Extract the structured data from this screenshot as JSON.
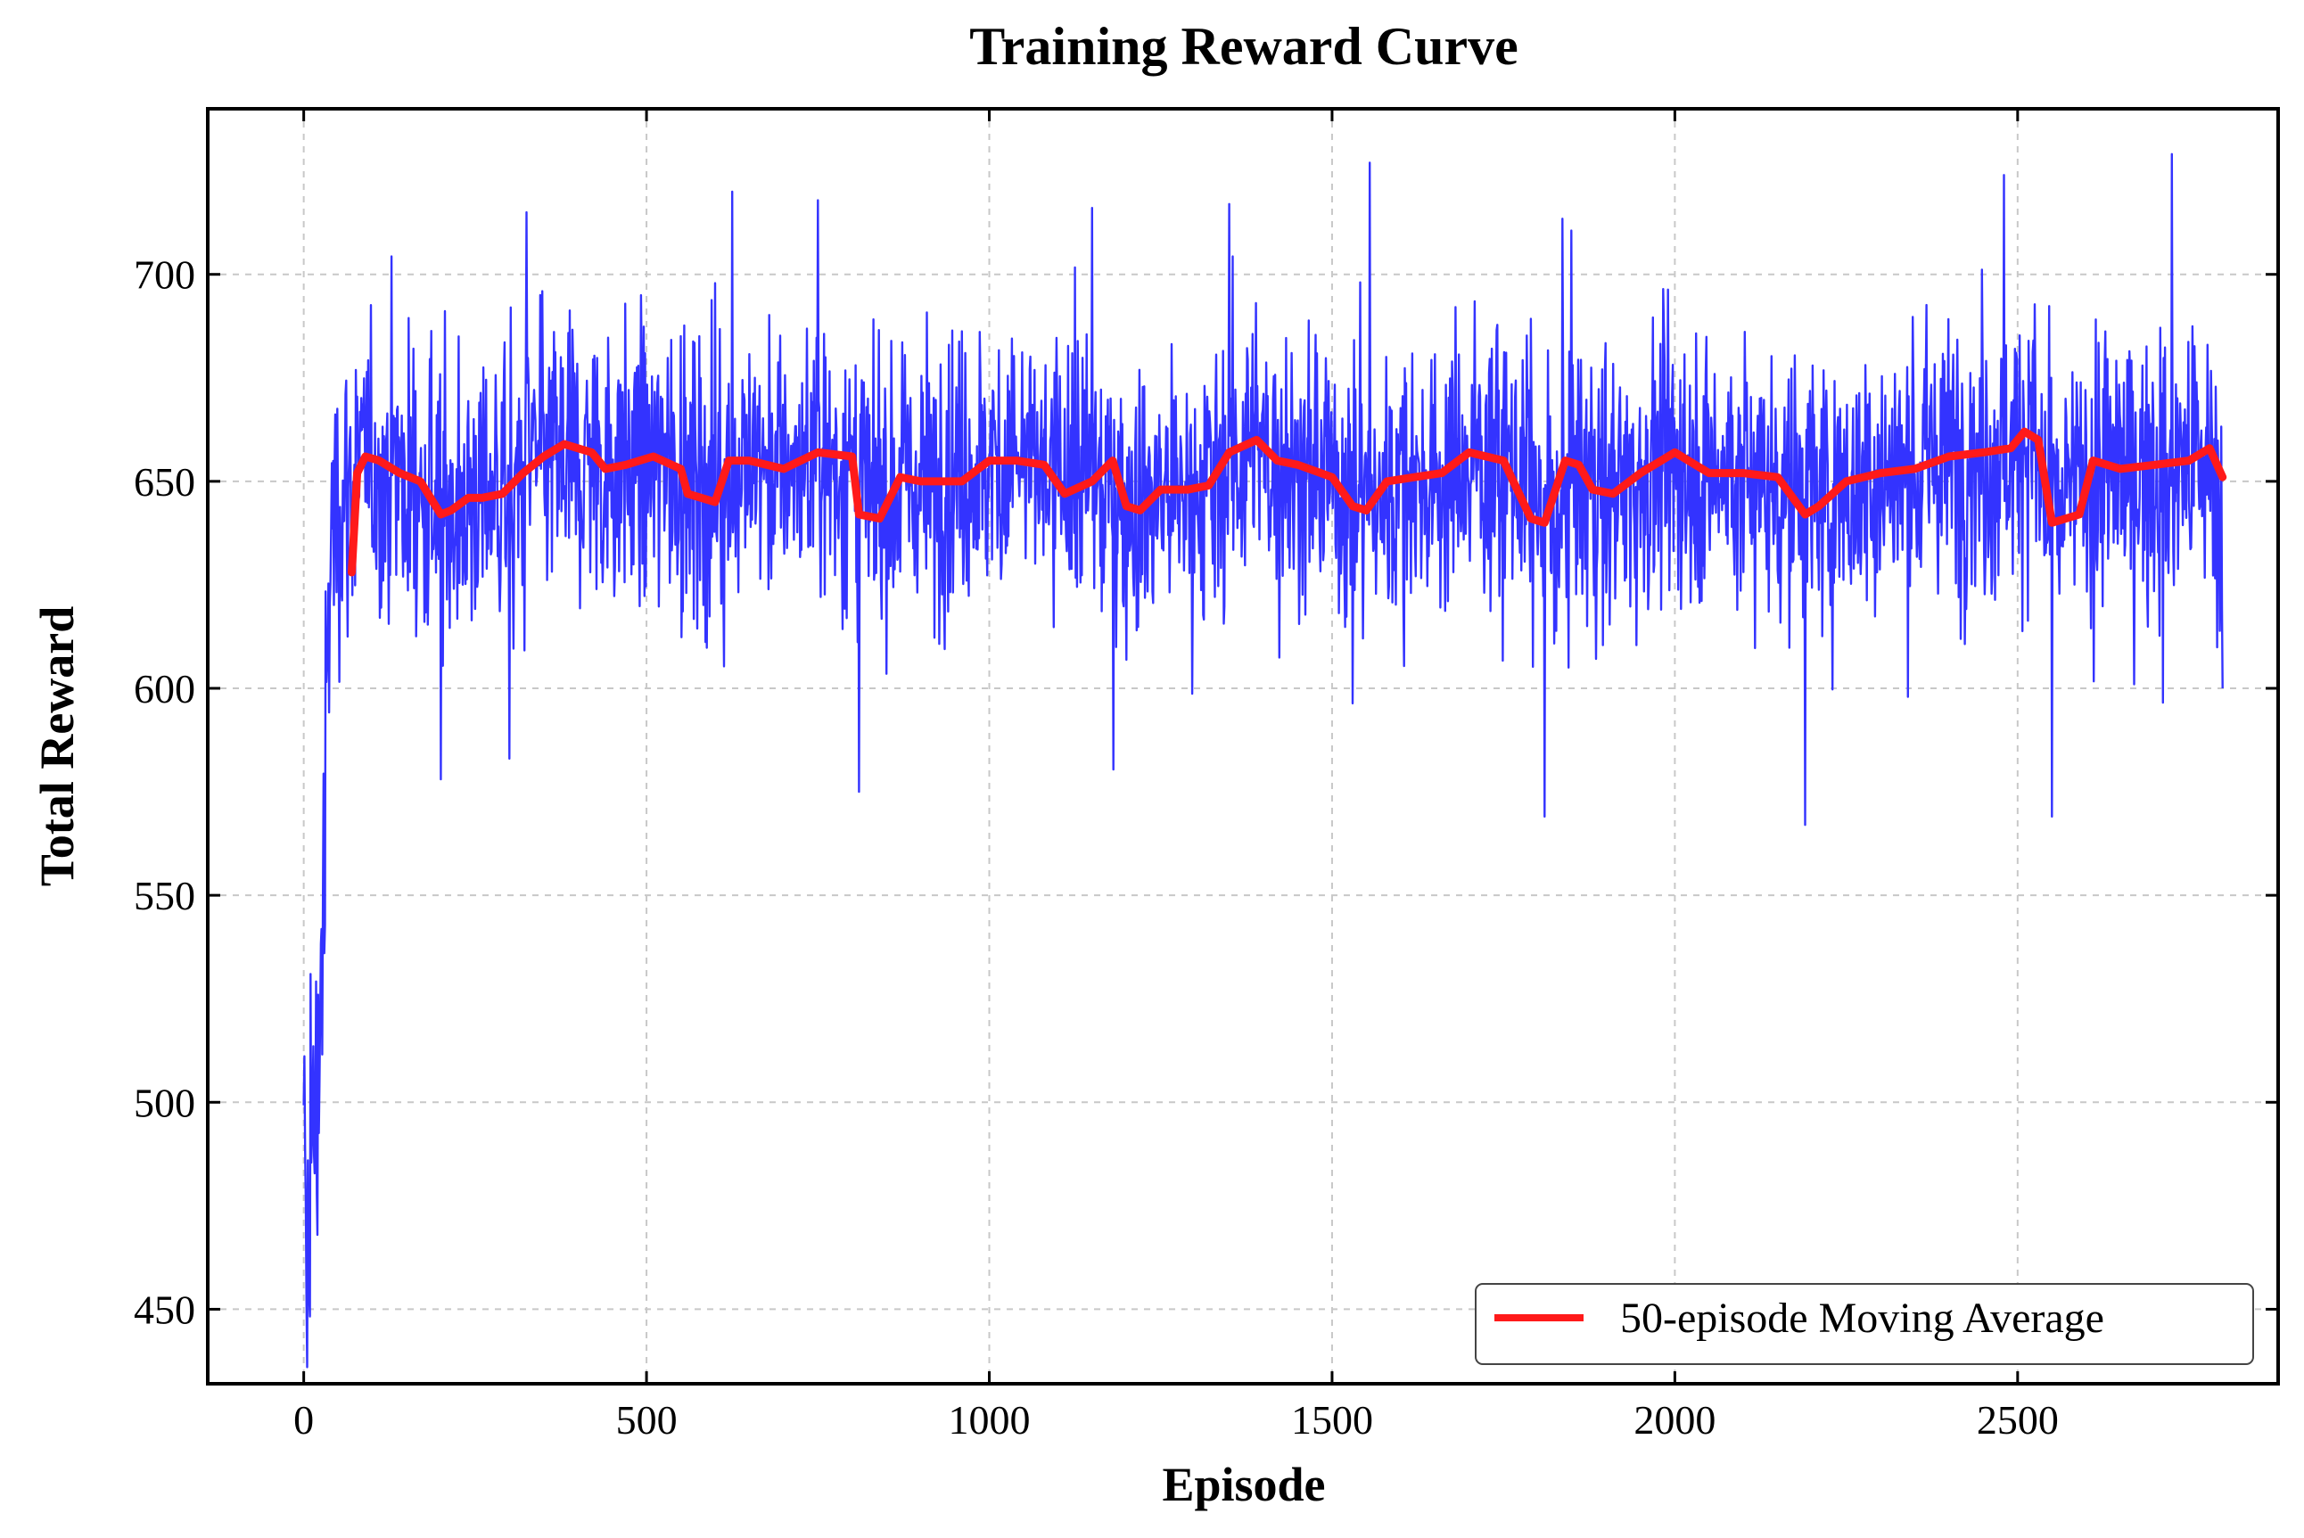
{
  "chart_data": {
    "type": "line",
    "title": "Training Reward Curve",
    "xlabel": "Episode",
    "ylabel": "Total Reward",
    "xlim": [
      -140,
      2880
    ],
    "ylim": [
      432,
      740
    ],
    "x_ticks": [
      0,
      500,
      1000,
      1500,
      2000,
      2500
    ],
    "y_ticks": [
      450,
      500,
      550,
      600,
      650,
      700
    ],
    "x_tick_labels": [
      "0",
      "500",
      "1000",
      "1500",
      "2000",
      "2500"
    ],
    "y_tick_labels": [
      "450",
      "500",
      "550",
      "600",
      "650",
      "700"
    ],
    "grid": true,
    "legend_position": "lower right",
    "num_episodes": 2800,
    "moving_average_window": 50,
    "series": [
      {
        "key": "raw",
        "color": "#3333ff",
        "x": [
          0,
          10,
          20,
          30,
          40,
          60,
          80,
          100,
          150,
          200,
          250,
          300,
          350,
          400,
          450,
          500,
          550,
          600,
          650,
          700,
          750,
          800,
          830,
          850,
          900,
          950,
          1000,
          1050,
          1100,
          1150,
          1200,
          1250,
          1300,
          1350,
          1400,
          1450,
          1500,
          1550,
          1600,
          1650,
          1700,
          1750,
          1800,
          1830,
          1850,
          1900,
          1950,
          2000,
          2050,
          2100,
          2150,
          2200,
          2250,
          2300,
          2350,
          2400,
          2450,
          2500,
          2520,
          2550,
          2600,
          2650,
          2700,
          2750,
          2799
        ],
        "mean_values": [
          470,
          480,
          500,
          560,
          640,
          648,
          652,
          653,
          650,
          644,
          646,
          648,
          655,
          657,
          654,
          654,
          654,
          648,
          654,
          653,
          655,
          652,
          642,
          648,
          650,
          652,
          654,
          655,
          649,
          652,
          645,
          647,
          648,
          655,
          657,
          653,
          651,
          645,
          650,
          651,
          655,
          656,
          645,
          641,
          653,
          648,
          652,
          656,
          652,
          651,
          651,
          644,
          648,
          651,
          652,
          656,
          656,
          659,
          662,
          640,
          652,
          652,
          653,
          655,
          652
        ],
        "key_points": [
          {
            "x": 5,
            "y": 436
          },
          {
            "x": 10,
            "y": 531
          },
          {
            "x": 30,
            "y": 536
          },
          {
            "x": 200,
            "y": 578
          },
          {
            "x": 300,
            "y": 583
          },
          {
            "x": 325,
            "y": 715
          },
          {
            "x": 625,
            "y": 720
          },
          {
            "x": 810,
            "y": 575
          },
          {
            "x": 1350,
            "y": 717
          },
          {
            "x": 1810,
            "y": 569
          },
          {
            "x": 2190,
            "y": 567
          },
          {
            "x": 2480,
            "y": 724
          },
          {
            "x": 2550,
            "y": 569
          },
          {
            "x": 2799,
            "y": 600
          }
        ]
      },
      {
        "key": "moving_average",
        "name": "50-episode Moving Average",
        "color": "#ff1a1a",
        "x": [
          70,
          78,
          90,
          110,
          140,
          170,
          200,
          215,
          240,
          260,
          290,
          320,
          350,
          380,
          420,
          440,
          470,
          510,
          550,
          560,
          600,
          620,
          650,
          700,
          750,
          800,
          810,
          840,
          870,
          900,
          960,
          1000,
          1040,
          1080,
          1110,
          1150,
          1180,
          1200,
          1220,
          1250,
          1290,
          1320,
          1350,
          1390,
          1420,
          1450,
          1500,
          1530,
          1550,
          1580,
          1620,
          1660,
          1700,
          1750,
          1790,
          1810,
          1840,
          1860,
          1880,
          1910,
          1950,
          2000,
          2050,
          2100,
          2150,
          2190,
          2210,
          2250,
          2300,
          2350,
          2400,
          2450,
          2490,
          2510,
          2530,
          2550,
          2590,
          2610,
          2650,
          2700,
          2750,
          2780,
          2799
        ],
        "y": [
          628,
          652,
          656,
          655,
          652,
          650,
          642,
          643,
          646,
          646,
          647,
          652,
          656,
          659,
          657,
          653,
          654,
          656,
          653,
          647,
          645,
          655,
          655,
          653,
          657,
          656,
          642,
          641,
          651,
          650,
          650,
          655,
          655,
          654,
          647,
          650,
          655,
          644,
          643,
          648,
          648,
          649,
          657,
          660,
          655,
          654,
          651,
          644,
          643,
          650,
          651,
          652,
          657,
          655,
          641,
          640,
          655,
          654,
          648,
          647,
          652,
          657,
          652,
          652,
          651,
          642,
          644,
          650,
          652,
          653,
          656,
          657,
          658,
          662,
          660,
          640,
          642,
          655,
          653,
          654,
          655,
          658,
          651
        ]
      }
    ]
  }
}
